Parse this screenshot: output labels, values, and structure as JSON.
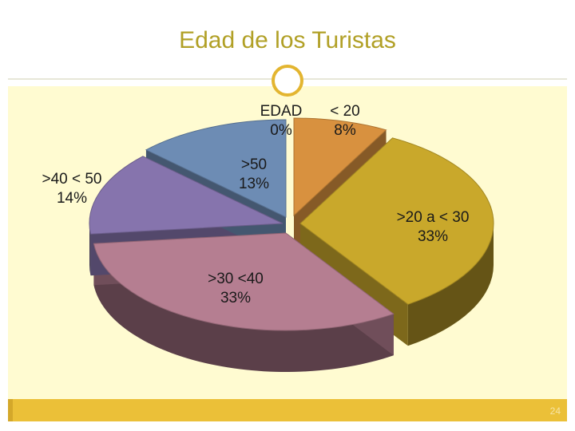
{
  "slide": {
    "title": "Edad de los Turistas",
    "page_number": "24"
  },
  "colors": {
    "accent": "#ebc038",
    "title": "#b1a026",
    "background": "#fffbd1"
  },
  "chart_data": {
    "type": "pie",
    "style": "3d-exploded",
    "title": "",
    "categories": [
      "EDAD",
      "< 20",
      ">20  a < 30",
      ">30 <40",
      ">40 < 50",
      ">50"
    ],
    "values": [
      0,
      8,
      33,
      33,
      14,
      13
    ],
    "label_percent": [
      "0%",
      "8%",
      "33%",
      "33%",
      "14%",
      "13%"
    ],
    "colors": [
      "#6d8cb4",
      "#d8913f",
      "#c9a82b",
      "#b57e91",
      "#8674ad",
      "#6d8cb4"
    ],
    "legend": "none"
  }
}
